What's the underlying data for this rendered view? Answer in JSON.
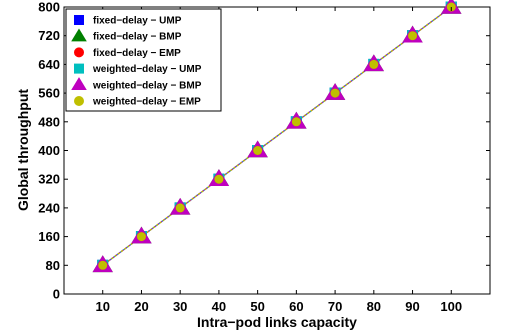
{
  "chart_data": {
    "type": "line",
    "xlabel": "Intra−pod links capacity",
    "ylabel": "Global throughput",
    "x": [
      10,
      20,
      30,
      40,
      50,
      60,
      70,
      80,
      90,
      100
    ],
    "xlim": [
      0,
      110
    ],
    "ylim": [
      0,
      800
    ],
    "xticks": [
      "10",
      "20",
      "30",
      "40",
      "50",
      "60",
      "70",
      "80",
      "90",
      "100"
    ],
    "yticks": [
      "0",
      "80",
      "160",
      "240",
      "320",
      "400",
      "480",
      "560",
      "640",
      "720",
      "800"
    ],
    "grid": false,
    "legend_position": "top-left",
    "series": [
      {
        "name": "fixed−delay − UMP",
        "values": [
          80,
          160,
          240,
          320,
          400,
          480,
          560,
          640,
          720,
          800
        ],
        "color": "#0000ff",
        "marker": "square"
      },
      {
        "name": "fixed−delay − BMP",
        "values": [
          80,
          160,
          240,
          320,
          400,
          480,
          560,
          640,
          720,
          800
        ],
        "color": "#008000",
        "marker": "triangle"
      },
      {
        "name": "fixed−delay − EMP",
        "values": [
          80,
          160,
          240,
          320,
          400,
          480,
          560,
          640,
          720,
          800
        ],
        "color": "#ff0000",
        "marker": "circle"
      },
      {
        "name": "weighted−delay − UMP",
        "values": [
          80,
          160,
          240,
          320,
          400,
          480,
          560,
          640,
          720,
          800
        ],
        "color": "#00bfbf",
        "marker": "square"
      },
      {
        "name": "weighted−delay − BMP",
        "values": [
          80,
          160,
          240,
          320,
          400,
          480,
          560,
          640,
          720,
          800
        ],
        "color": "#bf00bf",
        "marker": "triangle"
      },
      {
        "name": "weighted−delay − EMP",
        "values": [
          80,
          160,
          240,
          320,
          400,
          480,
          560,
          640,
          720,
          800
        ],
        "color": "#bfbf00",
        "marker": "circle"
      }
    ]
  }
}
